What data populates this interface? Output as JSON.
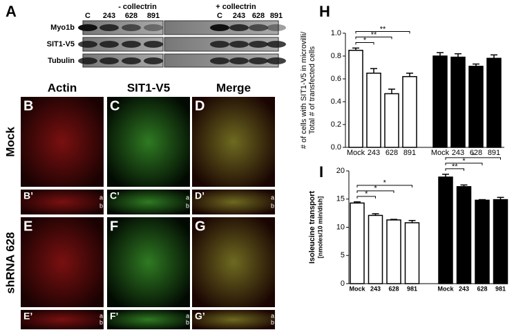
{
  "figure": {
    "panel_a": {
      "letter": "A",
      "groups": [
        "- collectrin",
        "+ collectrin"
      ],
      "lanes": [
        "C",
        "243",
        "628",
        "891",
        "C",
        "243",
        "628",
        "891"
      ],
      "rows": [
        "Myo1b",
        "SIT1-V5",
        "Tubulin"
      ]
    },
    "columns": [
      "Actin",
      "SIT1-V5",
      "Merge"
    ],
    "rows": [
      "Mock",
      "shRNA 628"
    ],
    "panels": [
      [
        "B",
        "C",
        "D"
      ],
      [
        "B’",
        "C’",
        "D’"
      ],
      [
        "E",
        "F",
        "G"
      ],
      [
        "E’",
        "F’",
        "G’"
      ]
    ],
    "strip_marks": [
      "a",
      "b"
    ]
  },
  "chart_data": [
    {
      "type": "bar",
      "panel_letter": "H",
      "y_label": [
        "# of cells with SIT1-V5 in microvilli/",
        "Total # of transfected cells"
      ],
      "categories": [
        "Mock",
        "243",
        "628",
        "891",
        "Mock",
        "243",
        "628",
        "891"
      ],
      "values": [
        0.85,
        0.65,
        0.47,
        0.62,
        0.8,
        0.79,
        0.71,
        0.78
      ],
      "errors": [
        0.02,
        0.04,
        0.04,
        0.03,
        0.03,
        0.03,
        0.02,
        0.03
      ],
      "colors": [
        "#ffffff",
        "#ffffff",
        "#ffffff",
        "#ffffff",
        "#000000",
        "#000000",
        "#000000",
        "#000000"
      ],
      "ylim": [
        0,
        1.0
      ],
      "yticks": [
        {
          "value": 0,
          "label": "0.0"
        },
        {
          "value": 0.2,
          "label": "0.2"
        },
        {
          "value": 0.4,
          "label": "0.4"
        },
        {
          "value": 0.6,
          "label": "0.6"
        },
        {
          "value": 0.8,
          "label": "0.8"
        },
        {
          "value": 1.0,
          "label": "1.0"
        }
      ],
      "brackets": [
        {
          "label": "*",
          "from": 0,
          "to": 1
        },
        {
          "label": "**",
          "from": 0,
          "to": 2
        },
        {
          "label": "**",
          "from": 0,
          "to": 3
        }
      ]
    },
    {
      "type": "bar",
      "panel_letter": "I",
      "y_label": [
        "Isoleucine transport",
        "[nmoles/10 min/dish]"
      ],
      "categories": [
        "Mock",
        "243",
        "628",
        "981",
        "Mock",
        "243",
        "628",
        "981"
      ],
      "values": [
        14.3,
        12.1,
        11.3,
        10.8,
        18.9,
        17.2,
        14.8,
        14.9
      ],
      "errors": [
        0.2,
        0.3,
        0.1,
        0.4,
        0.5,
        0.3,
        0.1,
        0.4
      ],
      "colors": [
        "#ffffff",
        "#ffffff",
        "#ffffff",
        "#ffffff",
        "#000000",
        "#000000",
        "#000000",
        "#000000"
      ],
      "ylim": [
        0,
        20
      ],
      "yticks": [
        0,
        5,
        10,
        15,
        20
      ],
      "brackets": [
        {
          "label": "*",
          "from": 0,
          "to": 1
        },
        {
          "label": "*",
          "from": 0,
          "to": 2
        },
        {
          "label": "*",
          "from": 0,
          "to": 3
        },
        {
          "label": "**",
          "from": 4,
          "to": 5
        },
        {
          "label": "*",
          "from": 4,
          "to": 6
        },
        {
          "label": "*",
          "from": 4,
          "to": 7
        }
      ]
    }
  ]
}
